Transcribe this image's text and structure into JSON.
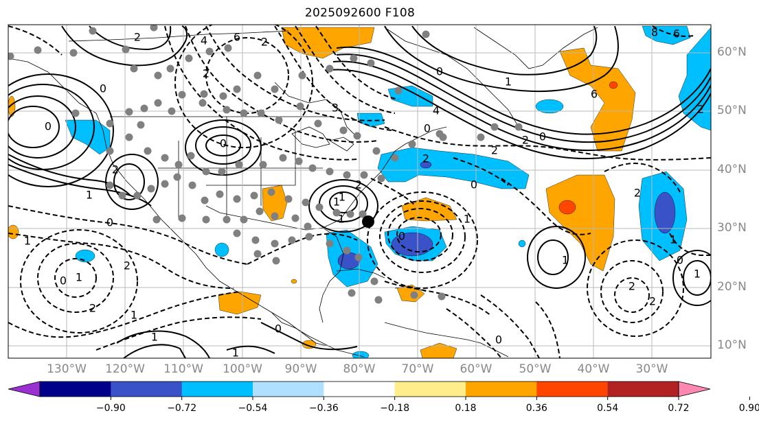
{
  "title": "2025092600 F108",
  "lat_labels": [
    "60°N",
    "50°N",
    "40°N",
    "30°N",
    "20°N",
    "10°N"
  ],
  "lon_labels": [
    "130°W",
    "120°W",
    "110°W",
    "100°W",
    "90°W",
    "80°W",
    "70°W",
    "60°W",
    "50°W",
    "40°W",
    "30°W"
  ],
  "colorbar": {
    "tick_labels": [
      "−0.90",
      "−0.72",
      "−0.54",
      "−0.36",
      "−0.18",
      "0.18",
      "0.36",
      "0.54",
      "0.72",
      "0.90"
    ],
    "colors": [
      "#9b30d0",
      "#00008b",
      "#3a52c8",
      "#00bfff",
      "#b0e0ff",
      "#ffffff",
      "#ffec8b",
      "#ffa500",
      "#ff4500",
      "#b22222",
      "#ff88b0"
    ]
  },
  "contour_labels": [
    "2",
    "2",
    "6",
    "4",
    "0",
    "0",
    "1",
    "2",
    "0",
    "1",
    "0",
    "1",
    "2",
    "0",
    "1",
    "2",
    "1",
    "3",
    "2",
    "4",
    "1",
    "1",
    "2",
    "0",
    "2",
    "0",
    "1",
    "1",
    "0",
    "1",
    "2",
    "0",
    "6",
    "8",
    "6",
    "1",
    "2",
    "2",
    "1",
    "0",
    "1",
    "2",
    "2",
    "2",
    "1",
    "0",
    "0",
    "0"
  ],
  "map_colors": {
    "positive": "#ffa500",
    "positive_strong": "#ff4500",
    "negative": "#00bfff",
    "negative_strong": "#3a52c8",
    "station_dot": "#808080",
    "storm_marker": "#000000",
    "grid": "#b0b0b0"
  }
}
